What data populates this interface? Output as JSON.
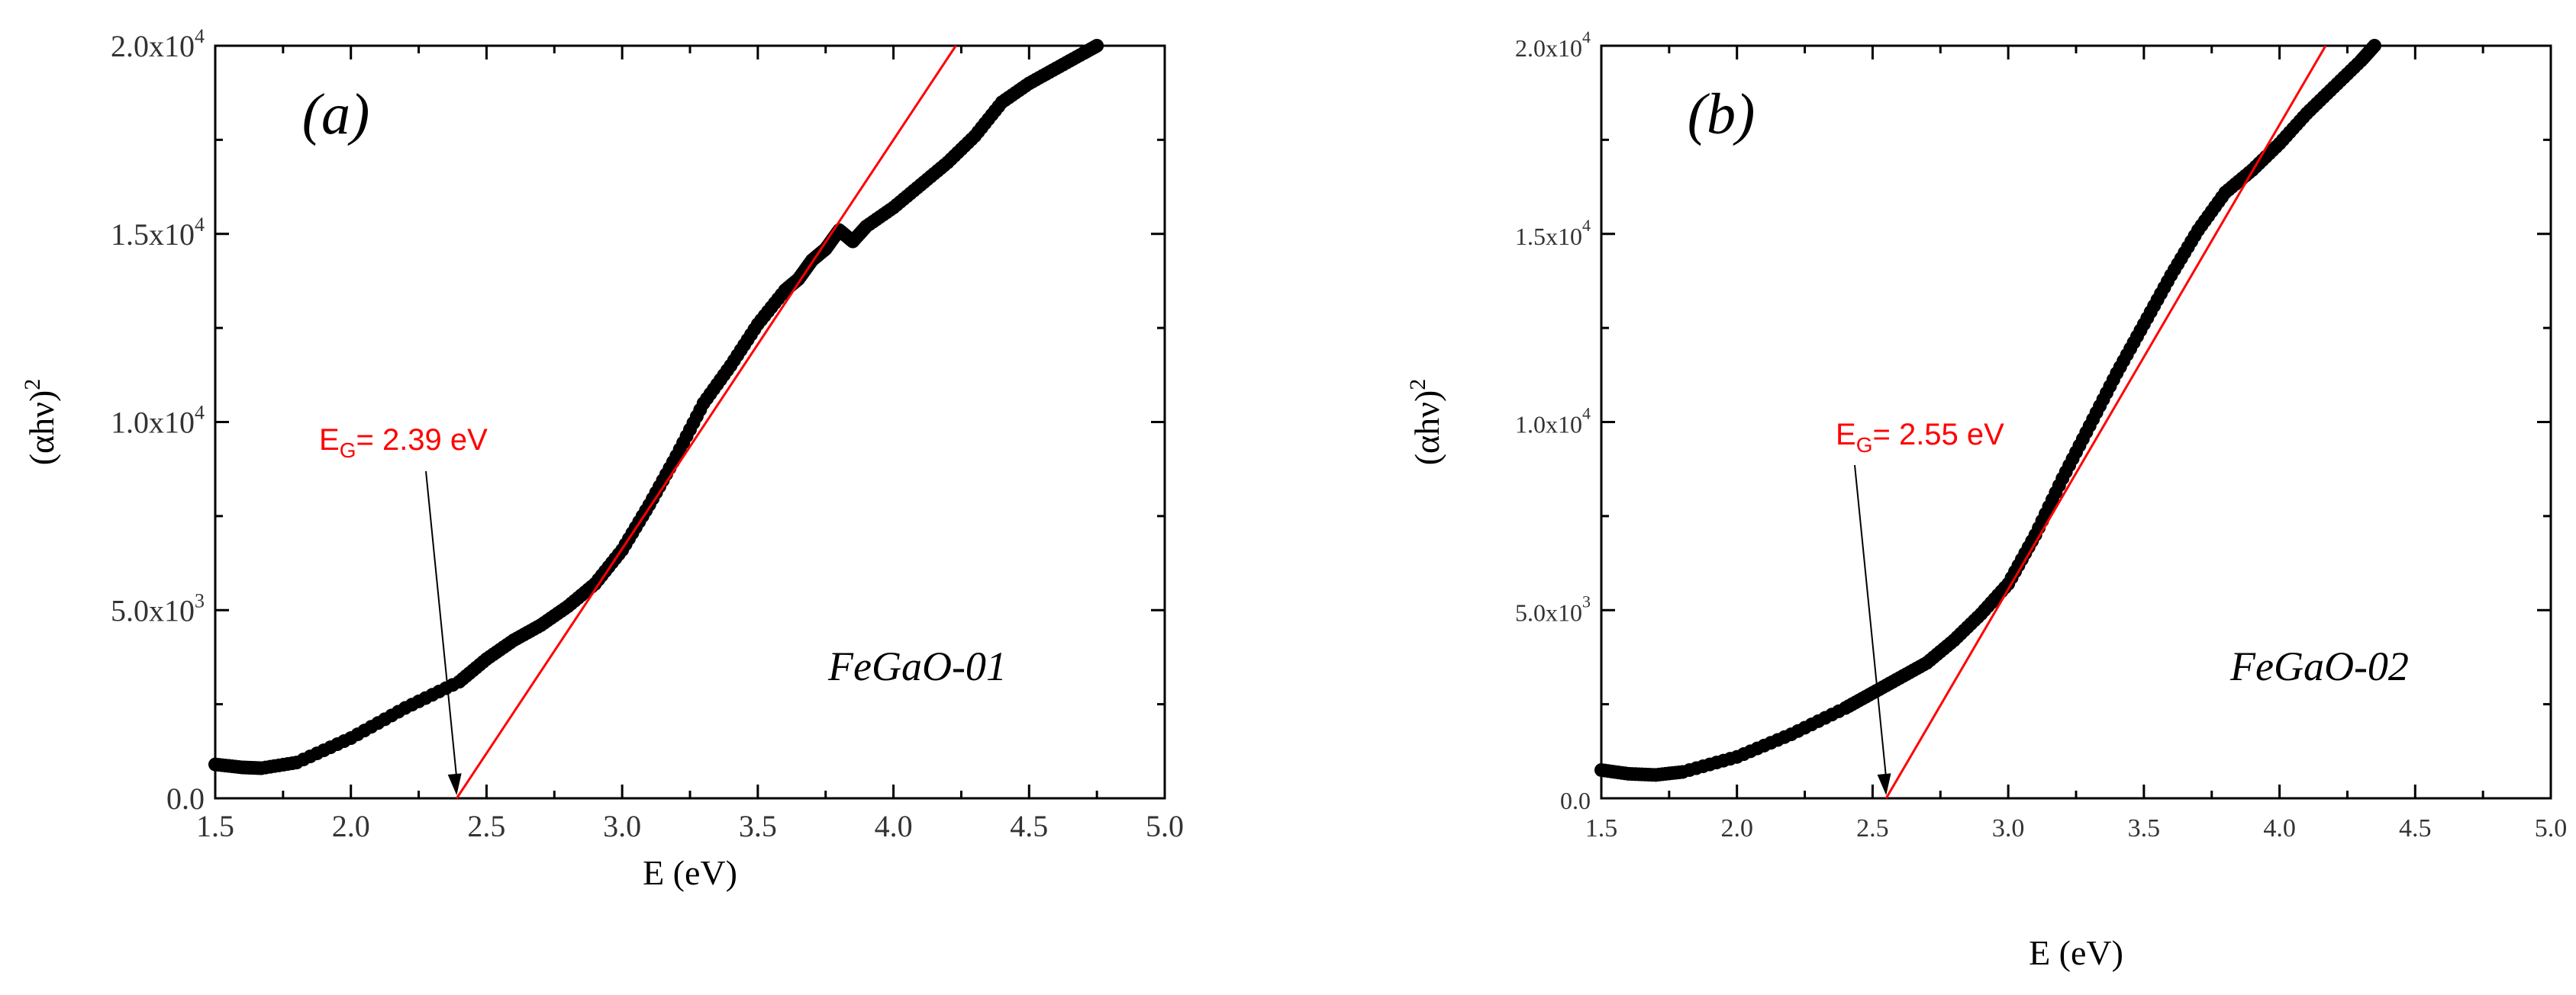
{
  "chart_data": [
    {
      "type": "scatter",
      "panel_label": "(a)",
      "sample_label": "FeGaO-01",
      "xlabel": "E (eV)",
      "ylabel_base": "(αhν)",
      "ylabel_exp": "2",
      "xlim": [
        1.5,
        5.0
      ],
      "ylim": [
        0,
        20000
      ],
      "x_ticks": [
        1.5,
        2.0,
        2.5,
        3.0,
        3.5,
        4.0,
        4.5,
        5.0
      ],
      "x_tick_labels": [
        "1.5",
        "2.0",
        "2.5",
        "3.0",
        "3.5",
        "4.0",
        "4.5",
        "5.0"
      ],
      "y_ticks": [
        {
          "value": 0,
          "mant": "0.0",
          "exp": ""
        },
        {
          "value": 5000,
          "mant": "5.0x10",
          "exp": "3"
        },
        {
          "value": 10000,
          "mant": "1.0x10",
          "exp": "4"
        },
        {
          "value": 15000,
          "mant": "1.5x10",
          "exp": "4"
        },
        {
          "value": 20000,
          "mant": "2.0x10",
          "exp": "4"
        }
      ],
      "series": [
        {
          "name": "FeGaO-01",
          "x": [
            1.5,
            1.6,
            1.67,
            1.8,
            2.0,
            2.2,
            2.4,
            2.5,
            2.6,
            2.7,
            2.8,
            2.9,
            3.0,
            3.1,
            3.2,
            3.3,
            3.4,
            3.5,
            3.6,
            3.65,
            3.7,
            3.75,
            3.8,
            3.85,
            3.9,
            4.0,
            4.1,
            4.2,
            4.3,
            4.4,
            4.5,
            4.6,
            4.7,
            4.75
          ],
          "y": [
            900,
            820,
            800,
            950,
            1600,
            2400,
            3100,
            3700,
            4200,
            4600,
            5100,
            5700,
            6600,
            7800,
            9100,
            10500,
            11500,
            12600,
            13500,
            13800,
            14300,
            14600,
            15100,
            14800,
            15200,
            15700,
            16300,
            16900,
            17600,
            18500,
            19000,
            19400,
            19800,
            20000
          ]
        }
      ],
      "fit_line": {
        "x": [
          2.39,
          4.23
        ],
        "y": [
          0,
          20000
        ]
      },
      "annotation": {
        "base": "E",
        "sub": "G",
        "rest": "= 2.39 eV",
        "x_value": 2.39
      }
    },
    {
      "type": "scatter",
      "panel_label": "(b)",
      "sample_label": "FeGaO-02",
      "xlabel": "E (eV)",
      "ylabel_base": "(αhν)",
      "ylabel_exp": "2",
      "xlim": [
        1.5,
        5.0
      ],
      "ylim": [
        0,
        20000
      ],
      "x_ticks": [
        1.5,
        2.0,
        2.5,
        3.0,
        3.5,
        4.0,
        4.5,
        5.0
      ],
      "x_tick_labels": [
        "1.5",
        "2.0",
        "2.5",
        "3.0",
        "3.5",
        "4.0",
        "4.5",
        "5.0"
      ],
      "y_ticks": [
        {
          "value": 0,
          "mant": "0.0",
          "exp": ""
        },
        {
          "value": 5000,
          "mant": "5.0x10",
          "exp": "3"
        },
        {
          "value": 10000,
          "mant": "1.0x10",
          "exp": "4"
        },
        {
          "value": 15000,
          "mant": "1.5x10",
          "exp": "4"
        },
        {
          "value": 20000,
          "mant": "2.0x10",
          "exp": "4"
        }
      ],
      "series": [
        {
          "name": "FeGaO-02",
          "x": [
            1.5,
            1.6,
            1.7,
            1.8,
            2.0,
            2.2,
            2.4,
            2.5,
            2.6,
            2.7,
            2.8,
            2.9,
            3.0,
            3.1,
            3.2,
            3.3,
            3.4,
            3.5,
            3.6,
            3.7,
            3.8,
            3.9,
            4.0,
            4.1,
            4.2,
            4.3,
            4.35
          ],
          "y": [
            750,
            650,
            620,
            700,
            1100,
            1700,
            2400,
            2800,
            3200,
            3600,
            4200,
            4900,
            5700,
            7000,
            8500,
            9900,
            11300,
            12600,
            13900,
            15100,
            16100,
            16700,
            17400,
            18200,
            18900,
            19600,
            20000
          ]
        }
      ],
      "fit_line": {
        "x": [
          2.55,
          4.17
        ],
        "y": [
          0,
          20000
        ]
      },
      "annotation": {
        "base": "E",
        "sub": "G",
        "rest": "= 2.55 eV",
        "x_value": 2.55
      }
    }
  ]
}
